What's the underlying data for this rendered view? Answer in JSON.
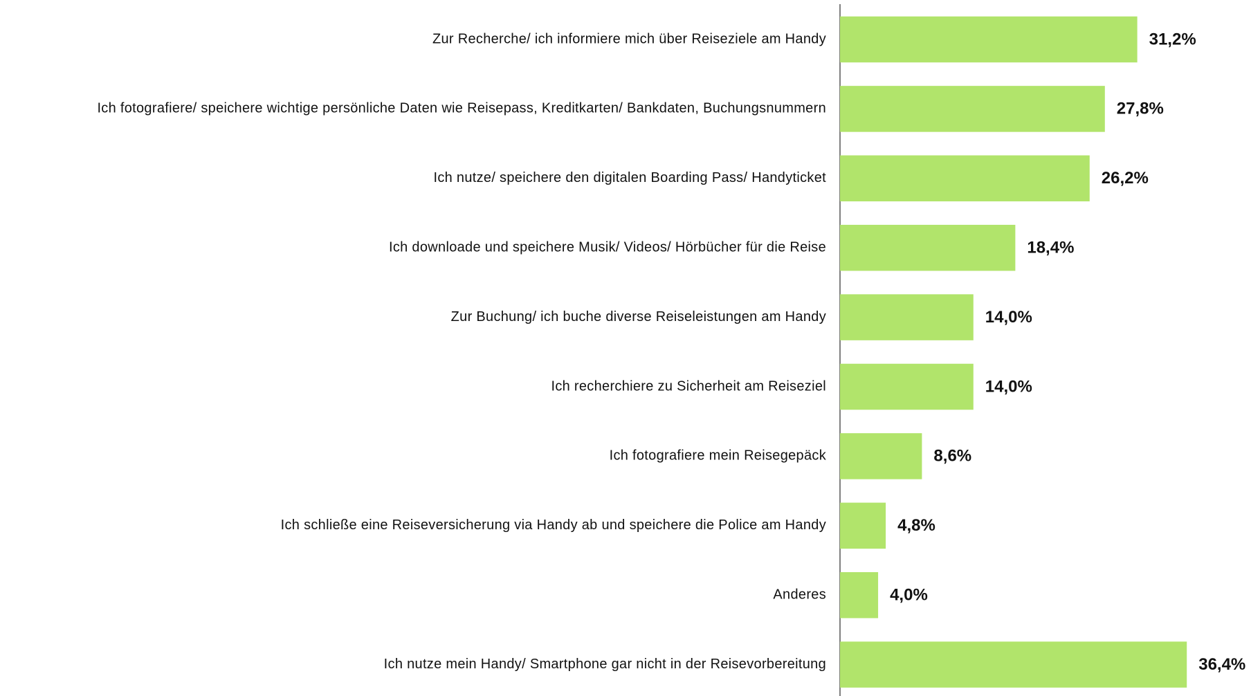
{
  "chart_data": {
    "type": "bar",
    "orientation": "horizontal",
    "categories": [
      "Zur Recherche/ ich informiere mich über Reiseziele am Handy",
      "Ich fotografiere/ speichere wichtige persönliche Daten wie Reisepass, Kreditkarten/ Bankdaten, Buchungsnummern",
      "Ich nutze/ speichere den digitalen Boarding Pass/ Handyticket",
      "Ich downloade und speichere Musik/ Videos/ Hörbücher für die Reise",
      "Zur Buchung/ ich buche diverse Reiseleistungen am Handy",
      "Ich recherchiere zu Sicherheit am Reiseziel",
      "Ich fotografiere mein Reisegepäck",
      "Ich schließe eine Reiseversicherung via Handy ab und speichere die Police am Handy",
      "Anderes",
      "Ich nutze mein Handy/ Smartphone gar nicht in der Reisevorbereitung"
    ],
    "values": [
      31.2,
      27.8,
      26.2,
      18.4,
      14.0,
      14.0,
      8.6,
      4.8,
      4.0,
      36.4
    ],
    "value_labels": [
      "31,2%",
      "27,8%",
      "26,2%",
      "18,4%",
      "14,0%",
      "14,0%",
      "8,6%",
      "4,8%",
      "4,0%",
      "36,4%"
    ],
    "color": "#b1e46b"
  }
}
